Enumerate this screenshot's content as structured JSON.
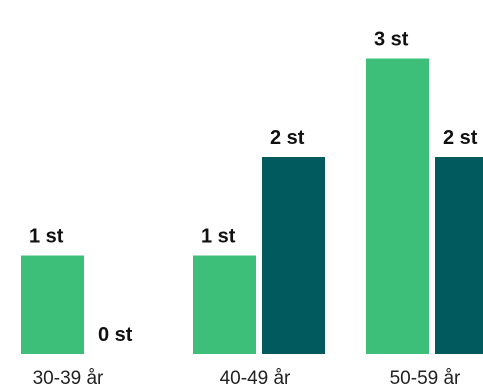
{
  "chart_data": {
    "type": "bar",
    "categories": [
      "30-39 år",
      "40-49 år",
      "50-59 år"
    ],
    "series": [
      {
        "values": [
          1,
          1,
          3
        ],
        "labels": [
          "1 st",
          "1 st",
          "3 st"
        ]
      },
      {
        "values": [
          0,
          2,
          2
        ],
        "labels": [
          "0 st",
          "2 st",
          "2 st"
        ]
      }
    ],
    "colors": [
      "#3dbf7a",
      "#005a5e"
    ],
    "title": "",
    "xlabel": "",
    "ylabel": "",
    "ylim": [
      0,
      3
    ]
  }
}
